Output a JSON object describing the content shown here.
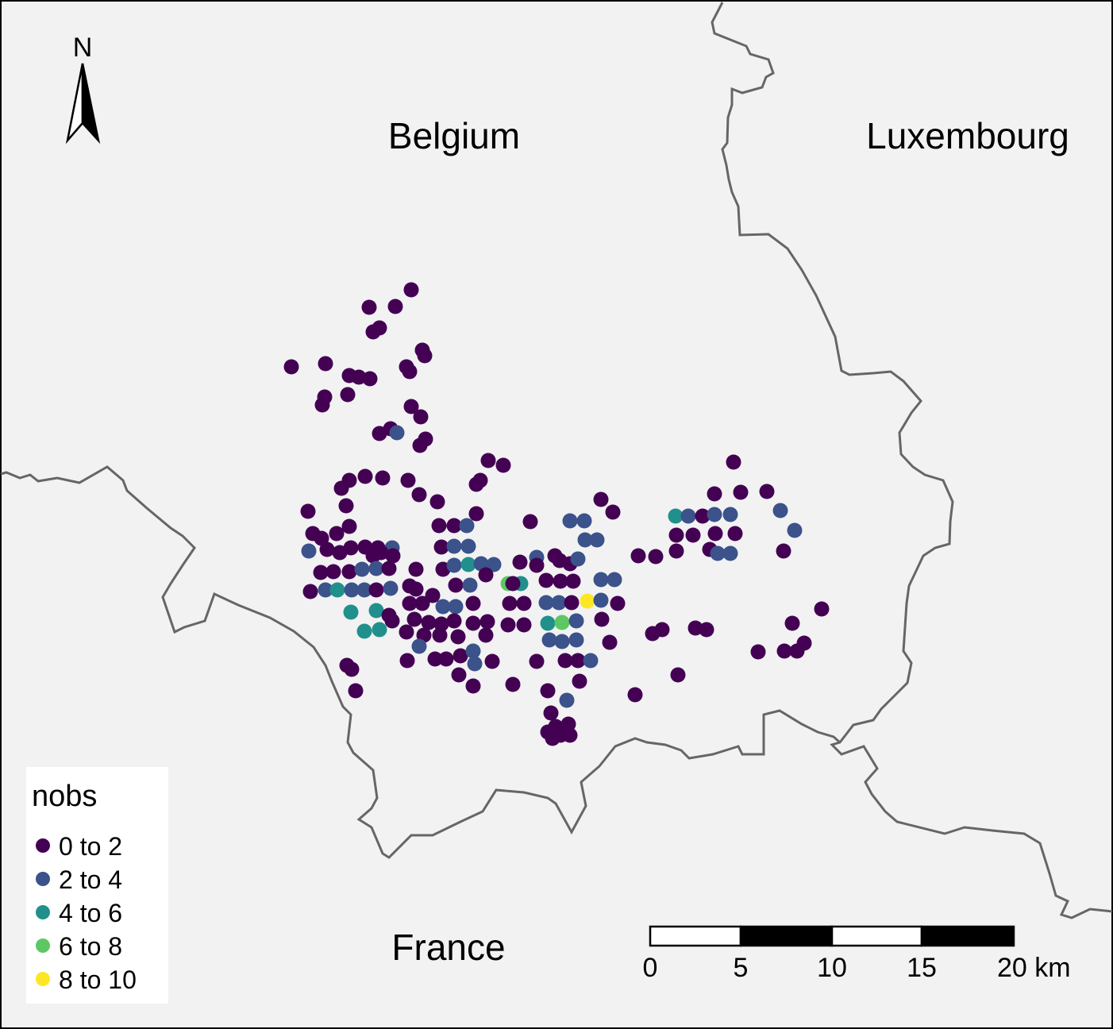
{
  "map": {
    "countries": [
      "Belgium",
      "Luxembourg",
      "France"
    ]
  },
  "north_arrow": {
    "letter": "N"
  },
  "legend": {
    "title": "nobs",
    "classes": [
      {
        "label": "0 to 2",
        "color": "#440154"
      },
      {
        "label": "2 to 4",
        "color": "#3B528B"
      },
      {
        "label": "4 to 6",
        "color": "#21908C"
      },
      {
        "label": "6 to 8",
        "color": "#5DC863"
      },
      {
        "label": "8 to 10",
        "color": "#FDE725"
      }
    ]
  },
  "scale_bar": {
    "ticks": [
      "0",
      "5",
      "10",
      "15",
      "20 km"
    ]
  },
  "colors": {
    "background": "#F2F2F2",
    "border": "#666666"
  }
}
